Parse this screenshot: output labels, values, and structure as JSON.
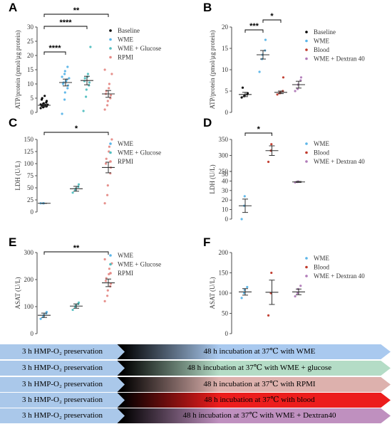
{
  "chart_data": [
    {
      "panel": "A",
      "type": "scatter",
      "ylabel": "ATP/protein (pmol/µg protein)",
      "ylim": [
        0,
        30
      ],
      "yticks": [
        0,
        5,
        10,
        15,
        20,
        25,
        30
      ],
      "legend": [
        "Baseline",
        "WME",
        "WME + Glucose",
        "RPMI"
      ],
      "groups": [
        {
          "name": "Baseline",
          "color": "#000000",
          "mean": 2.5,
          "sem": 0.4,
          "points": [
            1.5,
            1.8,
            2.0,
            2.1,
            2.2,
            2.3,
            2.4,
            2.5,
            2.6,
            2.7,
            2.8,
            3.0,
            3.2,
            3.5,
            4.0,
            4.5,
            5.0,
            5.8
          ]
        },
        {
          "name": "WME",
          "color": "#5bb5e8",
          "mean": 10.5,
          "sem": 1.2,
          "points": [
            -0.5,
            4.5,
            7.0,
            8.5,
            9.5,
            10.0,
            10.5,
            11.0,
            11.5,
            12.0,
            12.5,
            13.5,
            14.5,
            16.0
          ]
        },
        {
          "name": "WME + Glucose",
          "color": "#52bfc0",
          "mean": 11.2,
          "sem": 1.5,
          "points": [
            0.5,
            5.5,
            8.0,
            9.5,
            10.5,
            11.0,
            12.0,
            12.5,
            13.5,
            23.0
          ]
        },
        {
          "name": "RPMI",
          "color": "#e58a86",
          "mean": 6.5,
          "sem": 1.2,
          "points": [
            1.0,
            2.5,
            4.0,
            5.0,
            6.0,
            6.5,
            7.5,
            8.5,
            10.0,
            13.5,
            15.0
          ]
        }
      ],
      "significance": [
        {
          "from": "Baseline",
          "to": "WME",
          "label": "****"
        },
        {
          "from": "Baseline",
          "to": "WME + Glucose",
          "label": "****"
        },
        {
          "from": "Baseline",
          "to": "RPMI",
          "label": "**"
        }
      ]
    },
    {
      "panel": "B",
      "type": "scatter",
      "ylabel": "ATP/protein (pmol/µg protein)",
      "ylim": [
        0,
        20
      ],
      "yticks": [
        0,
        5,
        10,
        15,
        20
      ],
      "legend": [
        "Baseline",
        "WME",
        "Blood",
        "WME + Dextran 40"
      ],
      "groups": [
        {
          "name": "Baseline",
          "color": "#000000",
          "mean": 4.2,
          "sem": 0.5,
          "points": [
            3.5,
            3.8,
            4.0,
            4.2,
            4.5,
            5.8
          ]
        },
        {
          "name": "WME",
          "color": "#5bb5e8",
          "mean": 13.5,
          "sem": 1.0,
          "points": [
            9.5,
            12.5,
            13.5,
            14.5,
            17.0
          ]
        },
        {
          "name": "Blood",
          "color": "#c0392b",
          "mean": 4.7,
          "sem": 0.3,
          "points": [
            4.2,
            4.5,
            4.7,
            5.0,
            8.2
          ]
        },
        {
          "name": "WME + Dextran 40",
          "color": "#b07ab8",
          "mean": 6.5,
          "sem": 0.8,
          "points": [
            5.0,
            5.5,
            6.5,
            7.5,
            8.2
          ]
        }
      ],
      "significance": [
        {
          "from": "Baseline",
          "to": "WME",
          "label": "***"
        },
        {
          "from": "WME",
          "to": "Blood",
          "label": "*"
        }
      ]
    },
    {
      "panel": "C",
      "type": "scatter",
      "ylabel": "LDH (U/L)",
      "ylim": [
        0,
        150
      ],
      "yticks": [
        0,
        25,
        50,
        75,
        100,
        125,
        150
      ],
      "legend": [
        "WME",
        "WME + Glucose",
        "RPMI"
      ],
      "groups": [
        {
          "name": "WME",
          "color": "#5bb5e8",
          "mean": 18,
          "sem": 0,
          "points": [
            18,
            18,
            18
          ]
        },
        {
          "name": "WME + Glucose",
          "color": "#52bfc0",
          "mean": 48,
          "sem": 5,
          "points": [
            40,
            45,
            48,
            52,
            57
          ]
        },
        {
          "name": "RPMI",
          "color": "#e58a86",
          "mean": 92,
          "sem": 11,
          "points": [
            18,
            35,
            55,
            80,
            92,
            100,
            110,
            125,
            135,
            150
          ]
        }
      ],
      "significance": [
        {
          "from": "WME",
          "to": "RPMI",
          "label": "*"
        }
      ]
    },
    {
      "panel": "D",
      "type": "scatter",
      "ylabel": "LDH (U/L)",
      "broken_axis": true,
      "yticks_top": [
        250,
        300,
        350
      ],
      "yticks_bottom": [
        0,
        10,
        20,
        30,
        40,
        50
      ],
      "legend": [
        "WME",
        "Blood",
        "WME + Dextran 40"
      ],
      "groups": [
        {
          "name": "WME",
          "color": "#5bb5e8",
          "mean": 14,
          "sem": 7,
          "points": [
            0,
            14,
            24
          ]
        },
        {
          "name": "Blood",
          "color": "#c0392b",
          "mean": 315,
          "sem": 15,
          "points": [
            280,
            315,
            335
          ]
        },
        {
          "name": "WME + Dextran 40",
          "color": "#b07ab8",
          "mean": 39,
          "sem": 0.5,
          "points": [
            38.5,
            39,
            39.5
          ]
        }
      ],
      "significance": [
        {
          "from": "WME",
          "to": "Blood",
          "label": "*"
        }
      ]
    },
    {
      "panel": "E",
      "type": "scatter",
      "ylabel": "ASAT (U/L)",
      "ylim": [
        0,
        300
      ],
      "yticks": [
        0,
        100,
        200,
        300
      ],
      "legend": [
        "WME",
        "WME + Glucose",
        "RPMI"
      ],
      "groups": [
        {
          "name": "WME",
          "color": "#5bb5e8",
          "mean": 68,
          "sem": 8,
          "points": [
            55,
            62,
            68,
            75,
            80
          ]
        },
        {
          "name": "WME + Glucose",
          "color": "#52bfc0",
          "mean": 102,
          "sem": 8,
          "points": [
            88,
            98,
            104,
            110,
            115
          ]
        },
        {
          "name": "RPMI",
          "color": "#e58a86",
          "mean": 188,
          "sem": 14,
          "points": [
            120,
            140,
            160,
            175,
            185,
            195,
            205,
            220,
            240,
            260,
            275
          ]
        }
      ],
      "significance": [
        {
          "from": "WME",
          "to": "RPMI",
          "label": "**"
        }
      ]
    },
    {
      "panel": "F",
      "type": "scatter",
      "ylabel": "ASAT (U/L)",
      "ylim": [
        0,
        200
      ],
      "yticks": [
        0,
        50,
        100,
        150,
        200
      ],
      "legend": [
        "WME",
        "Blood",
        "WME + Dextran 40"
      ],
      "groups": [
        {
          "name": "WME",
          "color": "#5bb5e8",
          "mean": 103,
          "sem": 8,
          "points": [
            88,
            100,
            108,
            115
          ]
        },
        {
          "name": "Blood",
          "color": "#c0392b",
          "mean": 102,
          "sem": 30,
          "points": [
            45,
            100,
            150
          ]
        },
        {
          "name": "WME + Dextran 40",
          "color": "#b07ab8",
          "mean": 103,
          "sem": 7,
          "points": [
            92,
            100,
            110,
            118
          ]
        }
      ],
      "significance": []
    }
  ],
  "protocols": [
    {
      "left": "3 h HMP-O₂ preservation",
      "right": "48 h incubation at 37℃ with WME",
      "color": "#a9c9ef"
    },
    {
      "left": "3 h HMP-O₂ preservation",
      "right": "48 h incubation at 37℃ with WME + glucose",
      "color": "#b4dcc6"
    },
    {
      "left": "3 h HMP-O₂ preservation",
      "right": "48 h incubation at 37℃ with RPMI",
      "color": "#ddb1ad"
    },
    {
      "left": "3 h HMP-O₂ preservation",
      "right": "48 h incubation at 37℃ with blood",
      "color": "#ec1d1d"
    },
    {
      "left": "3 h HMP-O₂ preservation",
      "right": "48 h incubation at 37℃ with WME + Dextran40",
      "color": "#bf90bf"
    }
  ]
}
